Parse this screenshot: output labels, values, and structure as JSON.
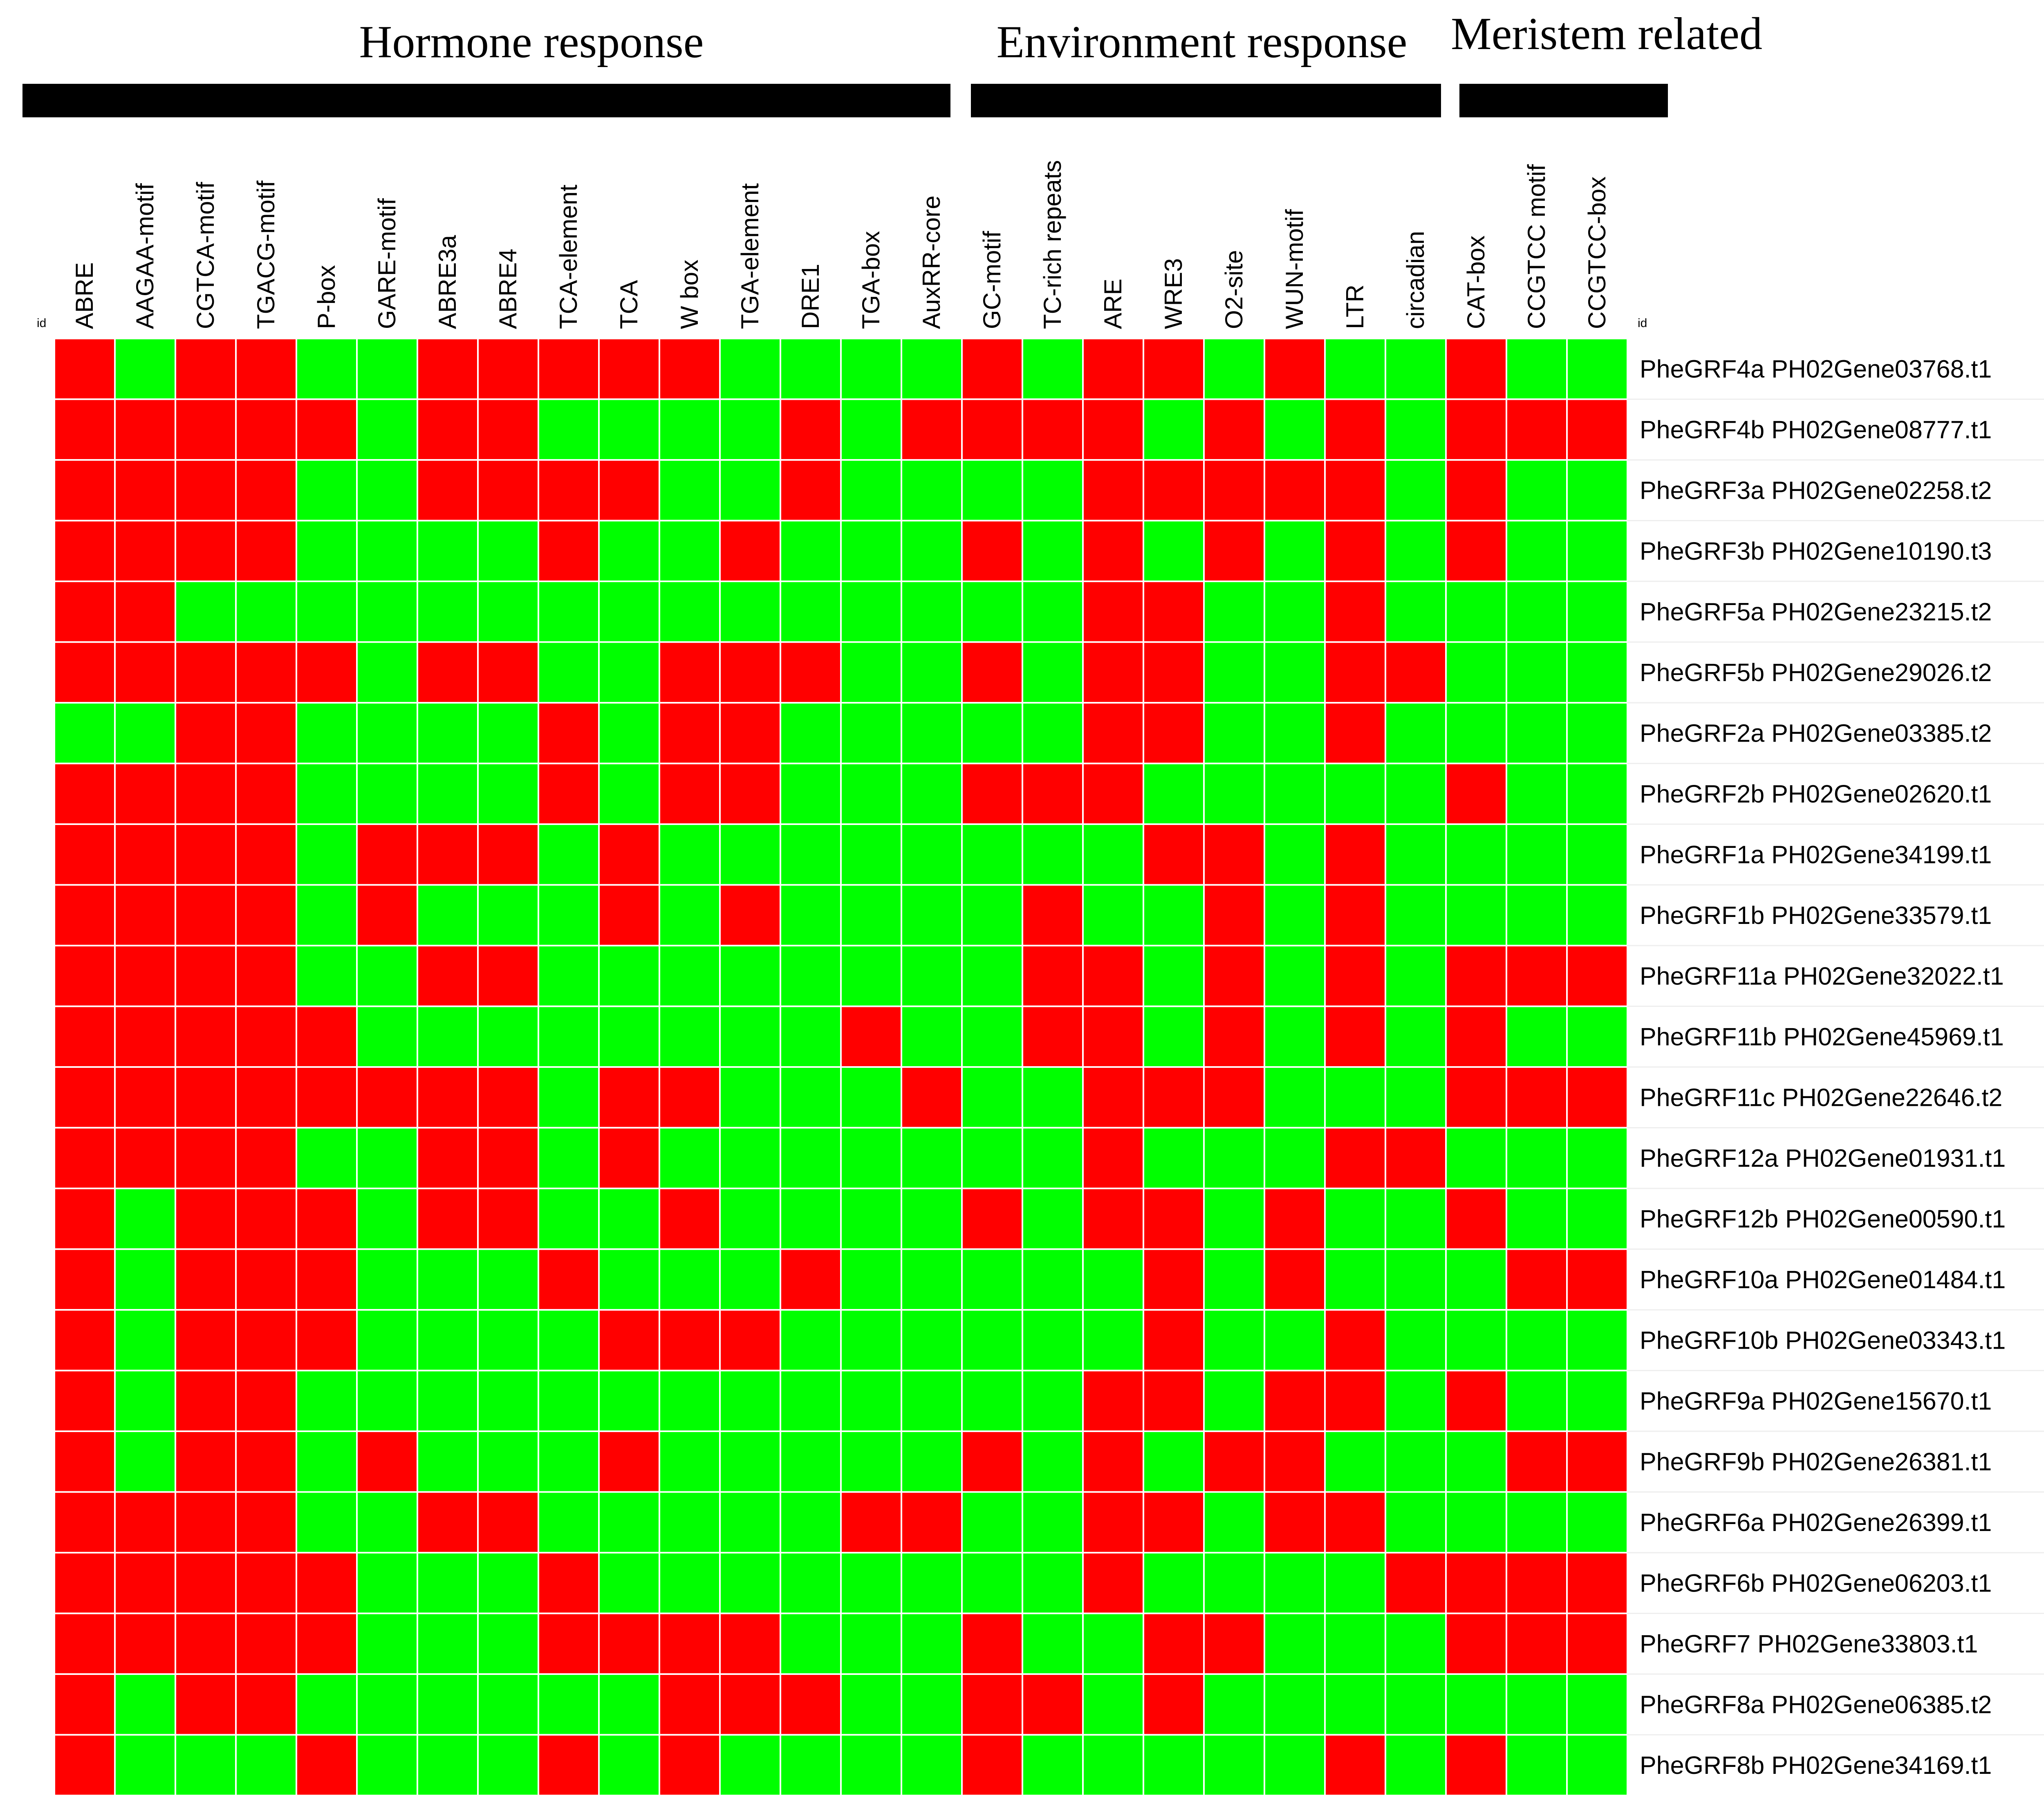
{
  "chart_data": {
    "type": "heatmap",
    "groups": [
      {
        "name": "Hormone response",
        "columns": [
          "ABRE",
          "AAGAA-motif",
          "CGTCA-motif",
          "TGACG-motif",
          "P-box",
          "GARE-motif",
          "ABRE3a",
          "ABRE4",
          "TCA-element",
          "TCA",
          "W box",
          "TGA-element",
          "DRE1",
          "TGA-box",
          "AuxRR-core"
        ]
      },
      {
        "name": "Environment response",
        "columns": [
          "GC-motif",
          "TC-rich repeats",
          "ARE",
          "WRE3",
          "O2-site",
          "WUN-motif",
          "LTR",
          "circadian"
        ]
      },
      {
        "name": "Meristem related",
        "columns": [
          "CAT-box",
          "CCGTCC motif",
          "CCGTCC-box"
        ]
      }
    ],
    "columns": [
      "ABRE",
      "AAGAA-motif",
      "CGTCA-motif",
      "TGACG-motif",
      "P-box",
      "GARE-motif",
      "ABRE3a",
      "ABRE4",
      "TCA-element",
      "TCA",
      "W box",
      "TGA-element",
      "DRE1",
      "TGA-box",
      "AuxRR-core",
      "GC-motif",
      "TC-rich repeats",
      "ARE",
      "WRE3",
      "O2-site",
      "WUN-motif",
      "LTR",
      "circadian",
      "CAT-box",
      "CCGTCC motif",
      "CCGTCC-box"
    ],
    "rows": [
      "PheGRF4a PH02Gene03768.t1",
      "PheGRF4b PH02Gene08777.t1",
      "PheGRF3a PH02Gene02258.t2",
      "PheGRF3b PH02Gene10190.t3",
      "PheGRF5a PH02Gene23215.t2",
      "PheGRF5b PH02Gene29026.t2",
      "PheGRF2a PH02Gene03385.t2",
      "PheGRF2b PH02Gene02620.t1",
      "PheGRF1a PH02Gene34199.t1",
      "PheGRF1b PH02Gene33579.t1",
      "PheGRF11a PH02Gene32022.t1",
      "PheGRF11b PH02Gene45969.t1",
      "PheGRF11c PH02Gene22646.t2",
      "PheGRF12a PH02Gene01931.t1",
      "PheGRF12b PH02Gene00590.t1",
      "PheGRF10a PH02Gene01484.t1",
      "PheGRF10b PH02Gene03343.t1",
      "PheGRF9a PH02Gene15670.t1",
      "PheGRF9b PH02Gene26381.t1",
      "PheGRF6a PH02Gene26399.t1",
      "PheGRF6b PH02Gene06203.t1",
      "PheGRF7 PH02Gene33803.t1",
      "PheGRF8a PH02Gene06385.t2",
      "PheGRF8b PH02Gene34169.t1"
    ],
    "values": [
      [
        1,
        0,
        1,
        1,
        0,
        0,
        1,
        1,
        1,
        1,
        1,
        0,
        0,
        0,
        0,
        1,
        0,
        1,
        1,
        0,
        1,
        0,
        0,
        1,
        0,
        0
      ],
      [
        1,
        1,
        1,
        1,
        1,
        0,
        1,
        1,
        0,
        0,
        0,
        0,
        1,
        0,
        1,
        1,
        1,
        1,
        0,
        1,
        0,
        1,
        0,
        1,
        1,
        1
      ],
      [
        1,
        1,
        1,
        1,
        0,
        0,
        1,
        1,
        1,
        1,
        0,
        0,
        1,
        0,
        0,
        0,
        0,
        1,
        1,
        1,
        1,
        1,
        0,
        1,
        0,
        0
      ],
      [
        1,
        1,
        1,
        1,
        0,
        0,
        0,
        0,
        1,
        0,
        0,
        1,
        0,
        0,
        0,
        1,
        0,
        1,
        0,
        1,
        0,
        1,
        0,
        1,
        0,
        0
      ],
      [
        1,
        1,
        0,
        0,
        0,
        0,
        0,
        0,
        0,
        0,
        0,
        0,
        0,
        0,
        0,
        0,
        0,
        1,
        1,
        0,
        0,
        1,
        0,
        0,
        0,
        0
      ],
      [
        1,
        1,
        1,
        1,
        1,
        0,
        1,
        1,
        0,
        0,
        1,
        1,
        1,
        0,
        0,
        1,
        0,
        1,
        1,
        0,
        0,
        1,
        1,
        0,
        0,
        0
      ],
      [
        0,
        0,
        1,
        1,
        0,
        0,
        0,
        0,
        1,
        0,
        1,
        1,
        0,
        0,
        0,
        0,
        0,
        1,
        1,
        0,
        0,
        1,
        0,
        0,
        0,
        0
      ],
      [
        1,
        1,
        1,
        1,
        0,
        0,
        0,
        0,
        1,
        0,
        1,
        1,
        0,
        0,
        0,
        1,
        1,
        1,
        0,
        0,
        0,
        0,
        0,
        1,
        0,
        0
      ],
      [
        1,
        1,
        1,
        1,
        0,
        1,
        1,
        1,
        0,
        1,
        0,
        0,
        0,
        0,
        0,
        0,
        0,
        0,
        1,
        1,
        0,
        1,
        0,
        0,
        0,
        0
      ],
      [
        1,
        1,
        1,
        1,
        0,
        1,
        0,
        0,
        0,
        1,
        0,
        1,
        0,
        0,
        0,
        0,
        1,
        0,
        0,
        1,
        0,
        1,
        0,
        0,
        0,
        0
      ],
      [
        1,
        1,
        1,
        1,
        0,
        0,
        1,
        1,
        0,
        0,
        0,
        0,
        0,
        0,
        0,
        0,
        1,
        1,
        0,
        1,
        0,
        1,
        0,
        1,
        1,
        1
      ],
      [
        1,
        1,
        1,
        1,
        1,
        0,
        0,
        0,
        0,
        0,
        0,
        0,
        0,
        1,
        0,
        0,
        1,
        1,
        0,
        1,
        0,
        1,
        0,
        1,
        0,
        0
      ],
      [
        1,
        1,
        1,
        1,
        1,
        1,
        1,
        1,
        0,
        1,
        1,
        0,
        0,
        0,
        1,
        0,
        0,
        1,
        1,
        1,
        0,
        0,
        0,
        1,
        1,
        1
      ],
      [
        1,
        1,
        1,
        1,
        0,
        0,
        1,
        1,
        0,
        1,
        0,
        0,
        0,
        0,
        0,
        0,
        0,
        1,
        0,
        0,
        0,
        1,
        1,
        0,
        0,
        0
      ],
      [
        1,
        0,
        1,
        1,
        1,
        0,
        1,
        1,
        0,
        0,
        1,
        0,
        0,
        0,
        0,
        1,
        0,
        1,
        1,
        0,
        1,
        0,
        0,
        1,
        0,
        0
      ],
      [
        1,
        0,
        1,
        1,
        1,
        0,
        0,
        0,
        1,
        0,
        0,
        0,
        1,
        0,
        0,
        0,
        0,
        0,
        1,
        0,
        1,
        0,
        0,
        0,
        1,
        1
      ],
      [
        1,
        0,
        1,
        1,
        1,
        0,
        0,
        0,
        0,
        1,
        1,
        1,
        0,
        0,
        0,
        0,
        0,
        0,
        1,
        0,
        0,
        1,
        0,
        0,
        0,
        0
      ],
      [
        1,
        0,
        1,
        1,
        0,
        0,
        0,
        0,
        0,
        0,
        0,
        0,
        0,
        0,
        0,
        0,
        0,
        1,
        1,
        0,
        1,
        1,
        0,
        1,
        0,
        0
      ],
      [
        1,
        0,
        1,
        1,
        0,
        1,
        0,
        0,
        0,
        1,
        0,
        0,
        0,
        0,
        0,
        1,
        0,
        1,
        0,
        1,
        1,
        0,
        0,
        0,
        1,
        1
      ],
      [
        1,
        1,
        1,
        1,
        0,
        0,
        1,
        1,
        0,
        0,
        0,
        0,
        0,
        1,
        1,
        0,
        0,
        1,
        1,
        0,
        1,
        1,
        0,
        0,
        0,
        0
      ],
      [
        1,
        1,
        1,
        1,
        1,
        0,
        0,
        0,
        1,
        0,
        0,
        0,
        0,
        0,
        0,
        0,
        0,
        1,
        0,
        0,
        0,
        0,
        1,
        1,
        1,
        1
      ],
      [
        1,
        1,
        1,
        1,
        1,
        0,
        0,
        0,
        1,
        1,
        1,
        1,
        0,
        0,
        0,
        1,
        0,
        0,
        1,
        1,
        0,
        0,
        0,
        1,
        1,
        1
      ],
      [
        1,
        0,
        1,
        1,
        0,
        0,
        0,
        0,
        0,
        0,
        1,
        1,
        1,
        0,
        0,
        1,
        1,
        0,
        1,
        0,
        0,
        0,
        0,
        0,
        0,
        0
      ],
      [
        1,
        0,
        0,
        0,
        1,
        0,
        0,
        0,
        1,
        0,
        1,
        0,
        0,
        0,
        0,
        1,
        0,
        0,
        0,
        0,
        0,
        1,
        0,
        1,
        0,
        0
      ]
    ],
    "color_present": "#ff0000",
    "color_absent": "#00ff00",
    "grid_color": "#ffffff",
    "bar_color": "#000000",
    "id_label_left": "id",
    "id_label_right": "id",
    "grid": true
  }
}
